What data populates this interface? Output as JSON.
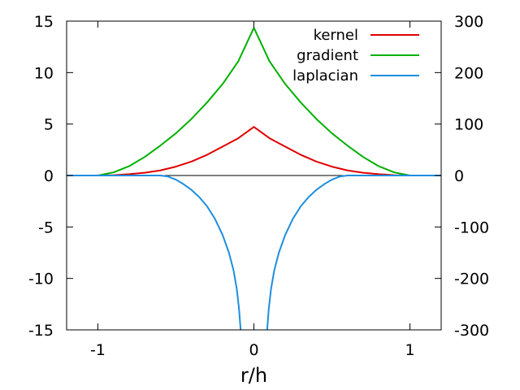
{
  "chart_data": {
    "type": "line",
    "xlabel": "r/h",
    "xlim": [
      -1.2,
      1.2
    ],
    "ylim": [
      -15,
      15
    ],
    "y2lim": [
      -300,
      300
    ],
    "x_ticks": [
      -1,
      0,
      1
    ],
    "y_ticks": [
      -15,
      -10,
      -5,
      0,
      5,
      10,
      15
    ],
    "y2_ticks": [
      -300,
      -200,
      -100,
      0,
      100,
      200,
      300
    ],
    "grid": false,
    "legend_position": "top-right",
    "zero_line": true,
    "series": [
      {
        "name": "kernel",
        "color": "#e00000",
        "axis": "y2",
        "points": [
          [
            -1.2,
            0
          ],
          [
            -1.0,
            0
          ],
          [
            -0.9,
            0.6
          ],
          [
            -0.8,
            2.5
          ],
          [
            -0.7,
            5.3
          ],
          [
            -0.6,
            9.9
          ],
          [
            -0.5,
            17.2
          ],
          [
            -0.4,
            27.2
          ],
          [
            -0.3,
            40.2
          ],
          [
            -0.2,
            56.2
          ],
          [
            -0.1,
            72.5
          ],
          [
            0.0,
            94.5
          ],
          [
            0.1,
            72.5
          ],
          [
            0.2,
            56.2
          ],
          [
            0.3,
            40.2
          ],
          [
            0.4,
            27.2
          ],
          [
            0.5,
            17.2
          ],
          [
            0.6,
            9.9
          ],
          [
            0.7,
            5.3
          ],
          [
            0.8,
            2.5
          ],
          [
            0.9,
            0.6
          ],
          [
            1.0,
            0
          ],
          [
            1.2,
            0
          ]
        ]
      },
      {
        "name": "gradient",
        "color": "#00b000",
        "axis": "y2",
        "points": [
          [
            -1.2,
            0
          ],
          [
            -1.0,
            0
          ],
          [
            -0.9,
            6
          ],
          [
            -0.8,
            18
          ],
          [
            -0.7,
            36
          ],
          [
            -0.6,
            58
          ],
          [
            -0.5,
            82
          ],
          [
            -0.4,
            110
          ],
          [
            -0.3,
            142
          ],
          [
            -0.2,
            178
          ],
          [
            -0.1,
            222
          ],
          [
            0.0,
            287
          ],
          [
            0.1,
            222
          ],
          [
            0.2,
            178
          ],
          [
            0.3,
            142
          ],
          [
            0.4,
            110
          ],
          [
            0.5,
            82
          ],
          [
            0.6,
            58
          ],
          [
            0.7,
            36
          ],
          [
            0.8,
            18
          ],
          [
            0.9,
            6
          ],
          [
            1.0,
            0
          ],
          [
            1.2,
            0
          ]
        ]
      },
      {
        "name": "laplacian",
        "color": "#1e8ee0",
        "axis": "y2",
        "points": [
          [
            -1.2,
            0
          ],
          [
            -0.6,
            0
          ],
          [
            -0.55,
            -2
          ],
          [
            -0.5,
            -8
          ],
          [
            -0.45,
            -17
          ],
          [
            -0.4,
            -28
          ],
          [
            -0.35,
            -42
          ],
          [
            -0.3,
            -60
          ],
          [
            -0.25,
            -84
          ],
          [
            -0.2,
            -116
          ],
          [
            -0.16,
            -150
          ],
          [
            -0.13,
            -185
          ],
          [
            -0.11,
            -220
          ],
          [
            -0.095,
            -260
          ],
          [
            -0.085,
            -300
          ],
          null,
          [
            0.085,
            -300
          ],
          [
            0.095,
            -260
          ],
          [
            0.11,
            -220
          ],
          [
            0.13,
            -185
          ],
          [
            0.16,
            -150
          ],
          [
            0.2,
            -116
          ],
          [
            0.25,
            -84
          ],
          [
            0.3,
            -60
          ],
          [
            0.35,
            -42
          ],
          [
            0.4,
            -28
          ],
          [
            0.45,
            -17
          ],
          [
            0.5,
            -8
          ],
          [
            0.55,
            -2
          ],
          [
            0.6,
            0
          ],
          [
            1.2,
            0
          ]
        ]
      }
    ]
  }
}
